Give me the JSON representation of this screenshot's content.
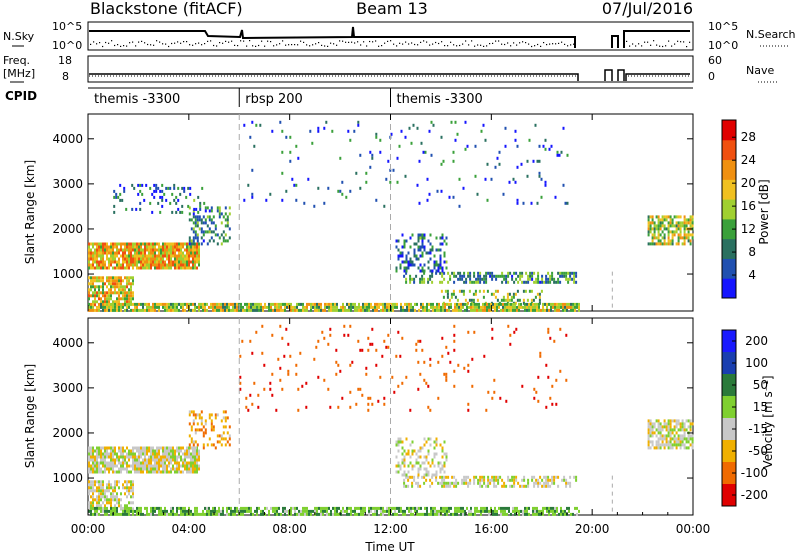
{
  "header": {
    "title_left": "Blackstone (fitACF)",
    "title_center": "Beam 13",
    "title_right": "07/Jul/2016"
  },
  "strip_sky": {
    "left_label": "N.Sky",
    "right_label": "N.Search",
    "left_ticks": [
      "10^5",
      "10^0"
    ],
    "right_ticks": [
      "10^5",
      "10^0"
    ]
  },
  "strip_freq": {
    "left_label_1": "Freq.",
    "left_label_2": "[MHz]",
    "right_label": "Nave",
    "left_ticks": [
      "18",
      "8"
    ],
    "right_ticks": [
      "60",
      "0"
    ]
  },
  "strip_cpid": {
    "label": "CPID",
    "segments": [
      {
        "text": "themis -3300",
        "start_hour": 0
      },
      {
        "text": "rbsp 200",
        "start_hour": 6
      },
      {
        "text": "themis -3300",
        "start_hour": 12
      }
    ]
  },
  "x_axis": {
    "label": "Time UT",
    "tick_labels": [
      "00:00",
      "04:00",
      "08:00",
      "12:00",
      "16:00",
      "20:00",
      "00:00"
    ],
    "tick_hours": [
      0,
      4,
      8,
      12,
      16,
      20,
      24
    ]
  },
  "chart_data": [
    {
      "type": "heatmap",
      "name": "Power",
      "ylabel": "Slant Range [km]",
      "ylim": [
        180,
        4550
      ],
      "xlim": [
        0,
        24
      ],
      "y_ticks": [
        "1000",
        "2000",
        "3000",
        "4000"
      ],
      "y_tick_values": [
        1000,
        2000,
        3000,
        4000
      ],
      "colorbar_title": "Power [dB]",
      "colorbar_ticks": [
        "4",
        "8",
        "12",
        "16",
        "20",
        "24",
        "28"
      ],
      "colorbar_tick_values": [
        4,
        8,
        12,
        16,
        20,
        24,
        28
      ],
      "colorbar_range": [
        0,
        31
      ],
      "scatter_bands": [
        {
          "t0": 0.0,
          "t1": 4.4,
          "r0": 1150,
          "r1": 1700,
          "value": 20,
          "density": 0.9
        },
        {
          "t0": 0.0,
          "t1": 1.8,
          "r0": 320,
          "r1": 950,
          "value": 18,
          "density": 0.75
        },
        {
          "t0": 4.0,
          "t1": 5.6,
          "r0": 1700,
          "r1": 2500,
          "value": 10,
          "density": 0.45
        },
        {
          "t0": 1.0,
          "t1": 4.6,
          "r0": 2400,
          "r1": 3000,
          "value": 7,
          "density": 0.18
        },
        {
          "t0": 12.5,
          "t1": 19.4,
          "r0": 800,
          "r1": 1050,
          "value": 10,
          "density": 0.55
        },
        {
          "t0": 12.2,
          "t1": 14.2,
          "r0": 1050,
          "r1": 1900,
          "value": 7,
          "density": 0.35
        },
        {
          "t0": 14.0,
          "t1": 18.0,
          "r0": 380,
          "r1": 650,
          "value": 14,
          "density": 0.35
        },
        {
          "t0": 0.0,
          "t1": 19.5,
          "r0": 180,
          "r1": 360,
          "value": 16,
          "density": 0.85
        },
        {
          "t0": 22.2,
          "t1": 24.0,
          "r0": 1650,
          "r1": 2300,
          "value": 16,
          "density": 0.75
        },
        {
          "t0": 6.0,
          "t1": 12.0,
          "r0": 2500,
          "r1": 4400,
          "value": 6,
          "density": 0.03
        },
        {
          "t0": 12.0,
          "t1": 19.0,
          "r0": 2500,
          "r1": 4400,
          "value": 6,
          "density": 0.04
        }
      ]
    },
    {
      "type": "heatmap",
      "name": "Velocity",
      "ylabel": "Slant Range [km]",
      "ylim": [
        180,
        4550
      ],
      "xlim": [
        0,
        24
      ],
      "y_ticks": [
        "1000",
        "2000",
        "3000",
        "4000"
      ],
      "y_tick_values": [
        1000,
        2000,
        3000,
        4000
      ],
      "colorbar_title": "Velocity [m s⁻¹]",
      "colorbar_ticks": [
        "200",
        "100",
        "50",
        "15",
        "-15",
        "-50",
        "-100",
        "-200"
      ],
      "scatter_bands": [
        {
          "t0": 0.0,
          "t1": 4.4,
          "r0": 1150,
          "r1": 1700,
          "value": 0,
          "density": 0.85
        },
        {
          "t0": 0.0,
          "t1": 1.8,
          "r0": 320,
          "r1": 950,
          "value": 0,
          "density": 0.7
        },
        {
          "t0": 4.0,
          "t1": 5.6,
          "r0": 1700,
          "r1": 2500,
          "value": -40,
          "density": 0.35
        },
        {
          "t0": 12.5,
          "t1": 19.4,
          "r0": 800,
          "r1": 1050,
          "value": 0,
          "density": 0.5
        },
        {
          "t0": 12.2,
          "t1": 14.2,
          "r0": 1050,
          "r1": 1900,
          "value": 0,
          "density": 0.35
        },
        {
          "t0": 0.0,
          "t1": 19.5,
          "r0": 180,
          "r1": 360,
          "value": 40,
          "density": 0.75
        },
        {
          "t0": 22.2,
          "t1": 24.0,
          "r0": 1650,
          "r1": 2300,
          "value": 0,
          "density": 0.7
        },
        {
          "t0": 6.0,
          "t1": 19.0,
          "r0": 2500,
          "r1": 4400,
          "value": -90,
          "density": 0.04
        }
      ]
    }
  ],
  "colors": {
    "power_scale": [
      "#1515ff",
      "#2050b0",
      "#2a7060",
      "#3aa03a",
      "#a0d030",
      "#f0c020",
      "#f09010",
      "#f05010",
      "#e00000"
    ],
    "velocity_scale": [
      "#1a1aff",
      "#1a3fb0",
      "#2a7a3a",
      "#7fd030",
      "#c8c8c8",
      "#f0b000",
      "#f06a00",
      "#e00000"
    ],
    "grid_dash": "#aaaaaa"
  }
}
